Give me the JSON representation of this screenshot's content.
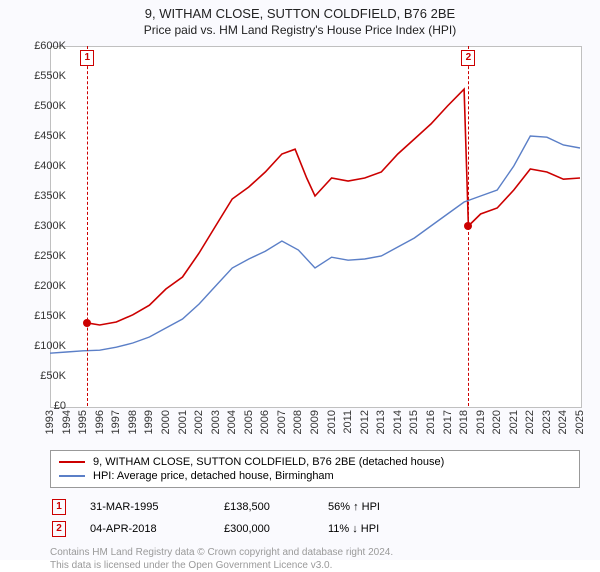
{
  "title": "9, WITHAM CLOSE, SUTTON COLDFIELD, B76 2BE",
  "subtitle": "Price paid vs. HM Land Registry's House Price Index (HPI)",
  "chart": {
    "type": "line",
    "background_color": "#ffffff",
    "grid_color": "#e4e4e4",
    "axis_color": "#c0c0c0",
    "ylim": [
      0,
      600000
    ],
    "ytick_step": 50000,
    "ytick_prefix": "£",
    "ytick_suffix": "K",
    "xlim": [
      1993,
      2025
    ],
    "xtick_step": 1,
    "label_fontsize": 11,
    "series": [
      {
        "name": "price_paid",
        "label": "9, WITHAM CLOSE, SUTTON COLDFIELD, B76 2BE (detached house)",
        "color": "#cc0000",
        "line_width": 1.6,
        "data": [
          [
            1995.25,
            138500
          ],
          [
            1996,
            135000
          ],
          [
            1997,
            140000
          ],
          [
            1998,
            152000
          ],
          [
            1999,
            168000
          ],
          [
            2000,
            195000
          ],
          [
            2001,
            215000
          ],
          [
            2002,
            255000
          ],
          [
            2003,
            300000
          ],
          [
            2004,
            345000
          ],
          [
            2005,
            365000
          ],
          [
            2006,
            390000
          ],
          [
            2007,
            420000
          ],
          [
            2007.8,
            428000
          ],
          [
            2008.5,
            380000
          ],
          [
            2009,
            350000
          ],
          [
            2010,
            380000
          ],
          [
            2011,
            375000
          ],
          [
            2012,
            380000
          ],
          [
            2013,
            390000
          ],
          [
            2014,
            420000
          ],
          [
            2015,
            445000
          ],
          [
            2016,
            470000
          ],
          [
            2017,
            500000
          ],
          [
            2018,
            528000
          ],
          [
            2018.26,
            300000
          ],
          [
            2019,
            320000
          ],
          [
            2020,
            330000
          ],
          [
            2021,
            360000
          ],
          [
            2022,
            395000
          ],
          [
            2023,
            390000
          ],
          [
            2024,
            378000
          ],
          [
            2025,
            380000
          ]
        ]
      },
      {
        "name": "hpi",
        "label": "HPI: Average price, detached house, Birmingham",
        "color": "#5b7fc7",
        "line_width": 1.4,
        "data": [
          [
            1993,
            88000
          ],
          [
            1994,
            90000
          ],
          [
            1995,
            92000
          ],
          [
            1996,
            93000
          ],
          [
            1997,
            98000
          ],
          [
            1998,
            105000
          ],
          [
            1999,
            115000
          ],
          [
            2000,
            130000
          ],
          [
            2001,
            145000
          ],
          [
            2002,
            170000
          ],
          [
            2003,
            200000
          ],
          [
            2004,
            230000
          ],
          [
            2005,
            245000
          ],
          [
            2006,
            258000
          ],
          [
            2007,
            275000
          ],
          [
            2008,
            260000
          ],
          [
            2009,
            230000
          ],
          [
            2010,
            248000
          ],
          [
            2011,
            243000
          ],
          [
            2012,
            245000
          ],
          [
            2013,
            250000
          ],
          [
            2014,
            265000
          ],
          [
            2015,
            280000
          ],
          [
            2016,
            300000
          ],
          [
            2017,
            320000
          ],
          [
            2018,
            340000
          ],
          [
            2019,
            350000
          ],
          [
            2020,
            360000
          ],
          [
            2021,
            400000
          ],
          [
            2022,
            450000
          ],
          [
            2023,
            448000
          ],
          [
            2024,
            435000
          ],
          [
            2025,
            430000
          ]
        ]
      }
    ],
    "sales": [
      {
        "marker": "1",
        "year": 1995.25,
        "price": 138500
      },
      {
        "marker": "2",
        "year": 2018.26,
        "price": 300000
      }
    ]
  },
  "legend": {
    "series_labels": [
      "9, WITHAM CLOSE, SUTTON COLDFIELD, B76 2BE (detached house)",
      "HPI: Average price, detached house, Birmingham"
    ]
  },
  "transactions": [
    {
      "marker": "1",
      "date": "31-MAR-1995",
      "price": "£138,500",
      "delta": "56% ↑ HPI"
    },
    {
      "marker": "2",
      "date": "04-APR-2018",
      "price": "£300,000",
      "delta": "11% ↓ HPI"
    }
  ],
  "footer": {
    "line1": "Contains HM Land Registry data © Crown copyright and database right 2024.",
    "line2": "This data is licensed under the Open Government Licence v3.0."
  },
  "colors": {
    "marker_border": "#cc0000",
    "sale_dot": "#cc0000"
  }
}
